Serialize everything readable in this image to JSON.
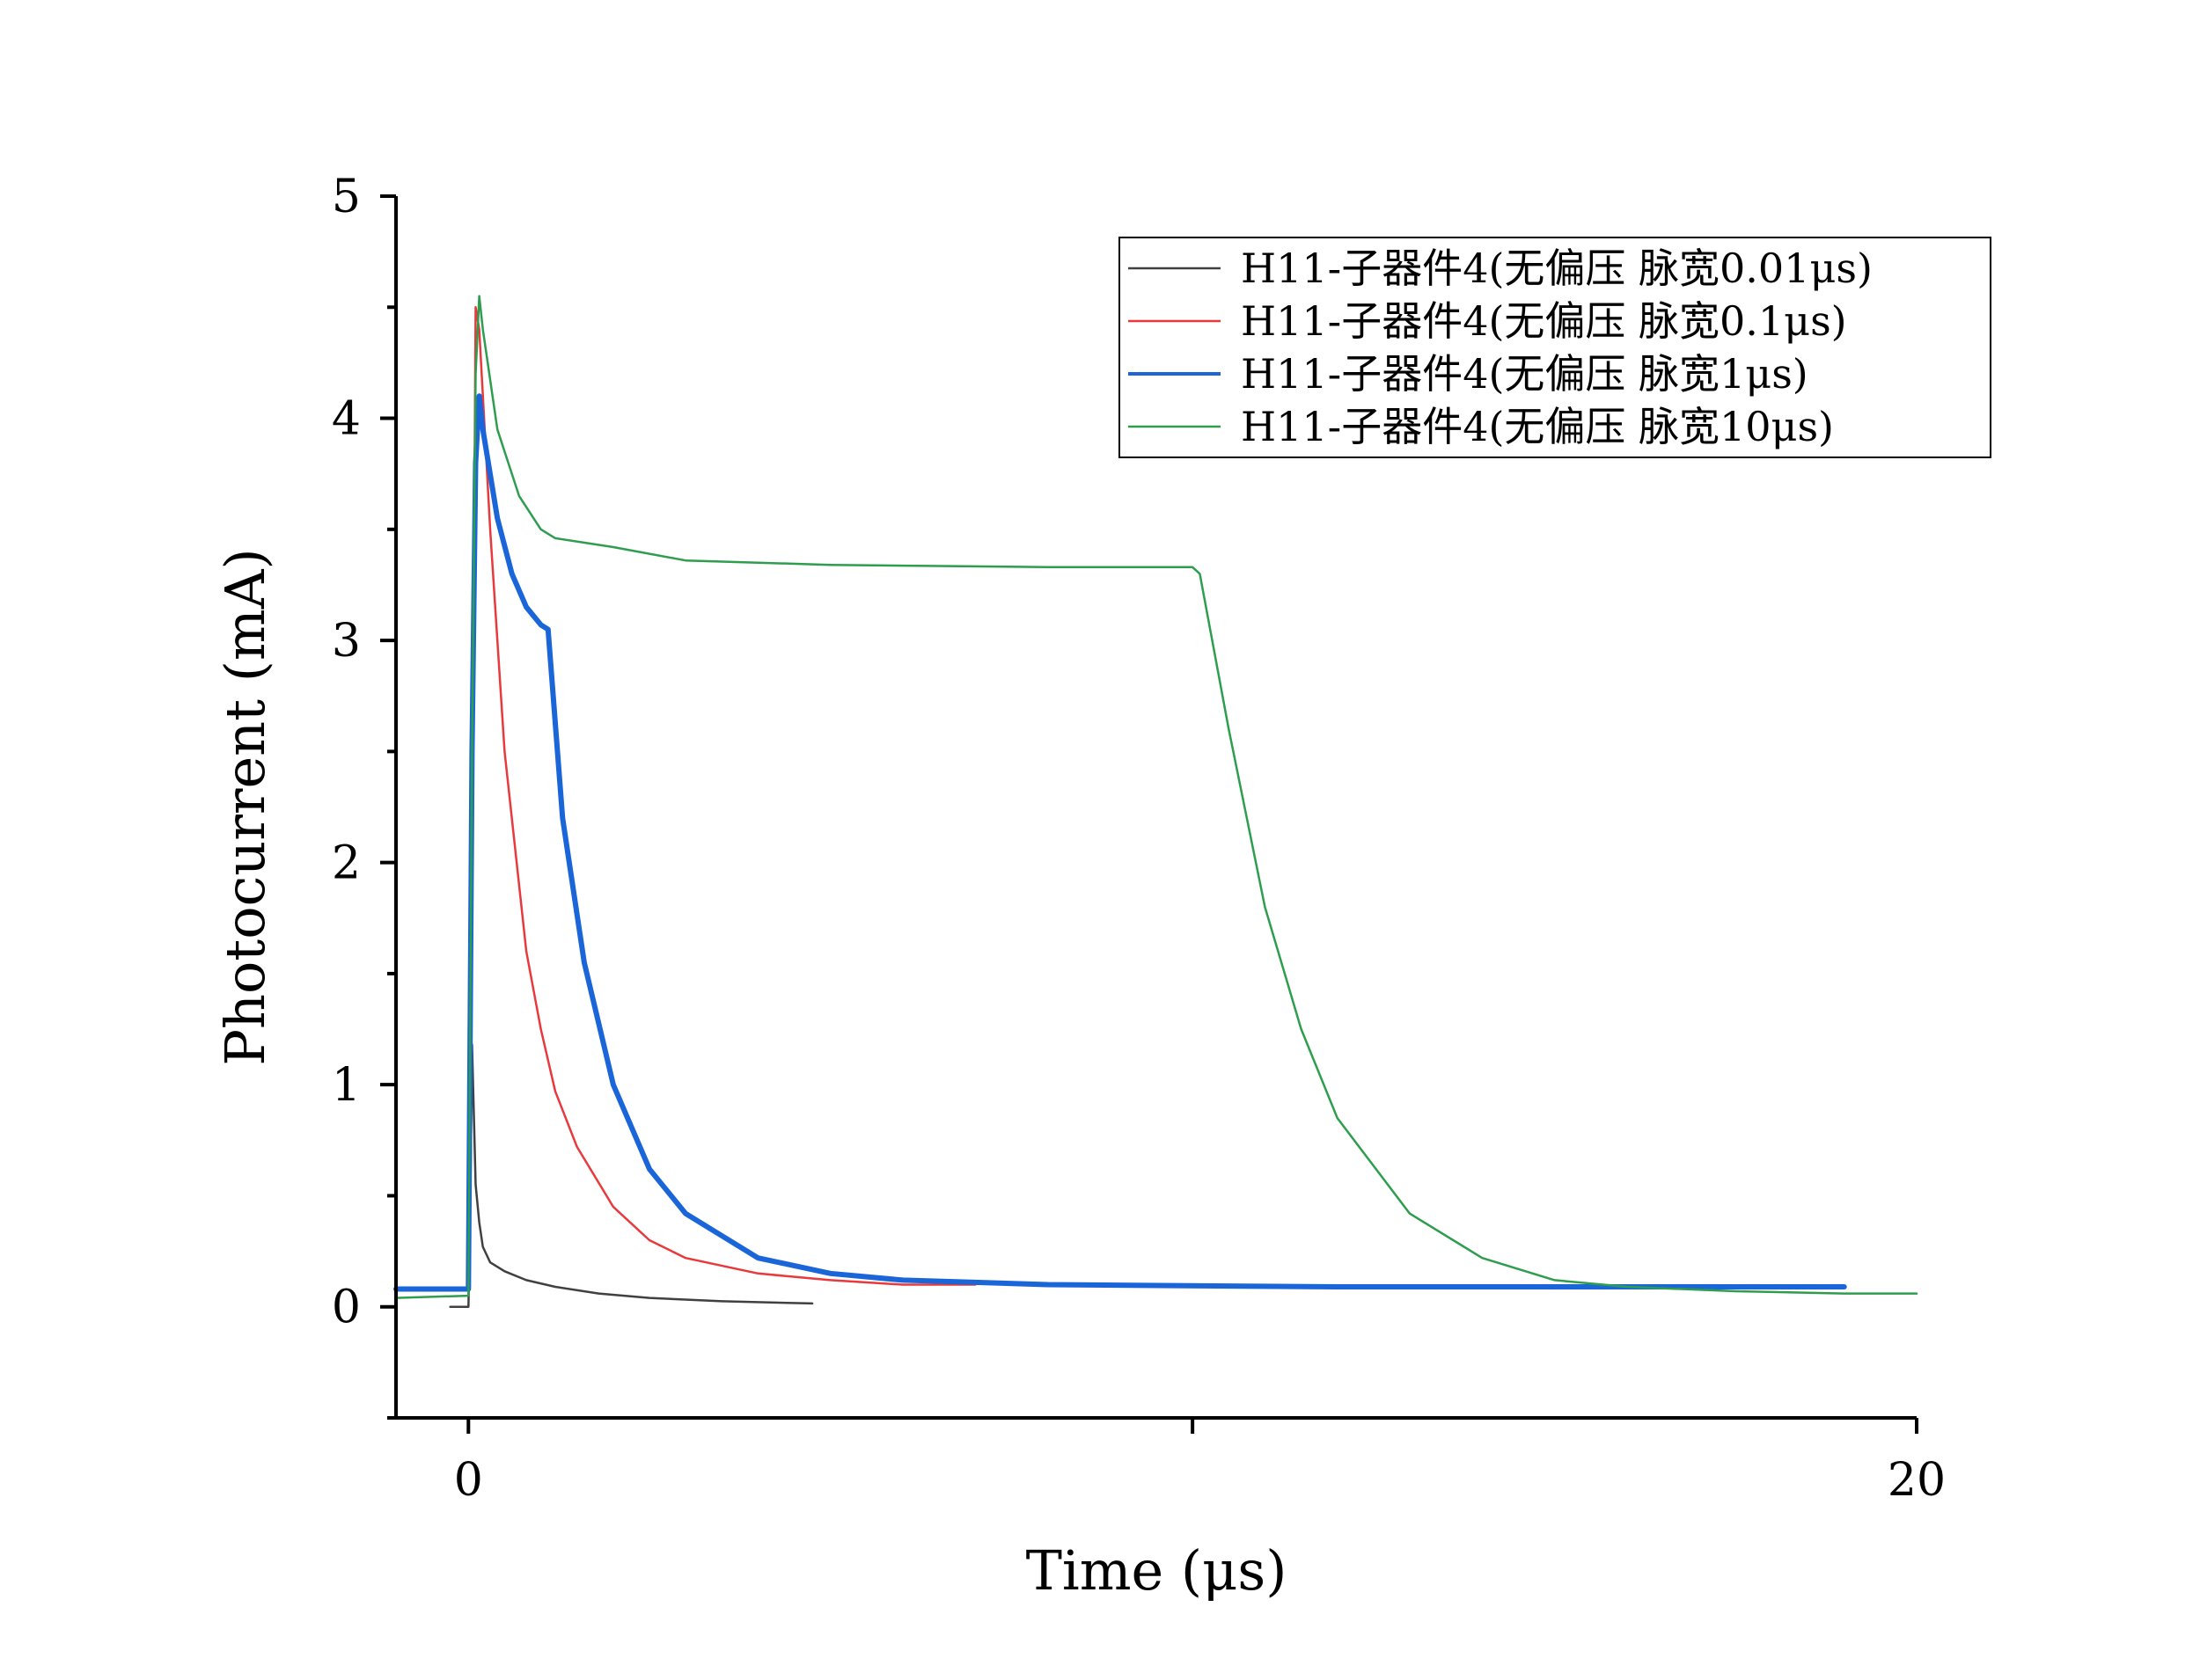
{
  "chart_data": {
    "type": "line",
    "title": "",
    "xlabel": "Time (μs)",
    "ylabel": "Photocurrent (mA)",
    "xlim": [
      -1,
      20
    ],
    "ylim": [
      -0.5,
      5
    ],
    "x_ticks": [
      0,
      10,
      20
    ],
    "x_tick_labels": [
      "0",
      "",
      "20"
    ],
    "y_ticks": [
      0,
      1,
      2,
      3,
      4,
      5
    ],
    "y_tick_labels": [
      "0",
      "1",
      "2",
      "3",
      "4",
      "5"
    ],
    "grid": false,
    "legend_position": "top-right",
    "series": [
      {
        "name": "H11-子器件4(无偏压 脉宽0.01μs)",
        "color": "#404040",
        "x": [
          -0.25,
          0,
          0.02,
          0.05,
          0.08,
          0.1,
          0.15,
          0.2,
          0.3,
          0.5,
          0.8,
          1.2,
          1.8,
          2.5,
          3.5,
          4.75
        ],
        "y": [
          0.0,
          0.0,
          0.3,
          1.18,
          0.8,
          0.55,
          0.38,
          0.27,
          0.2,
          0.16,
          0.12,
          0.09,
          0.06,
          0.04,
          0.025,
          0.015
        ]
      },
      {
        "name": "H11-子器件4(无偏压 脉宽0.1μs)",
        "color": "#e8393c",
        "x": [
          -1,
          0,
          0.05,
          0.1,
          0.15,
          0.3,
          0.5,
          0.8,
          1.0,
          1.2,
          1.5,
          2.0,
          2.5,
          3.0,
          4.0,
          5.0,
          6.0,
          7.0
        ],
        "y": [
          0.08,
          0.08,
          2.0,
          4.5,
          4.4,
          3.5,
          2.5,
          1.6,
          1.25,
          0.97,
          0.72,
          0.45,
          0.3,
          0.22,
          0.15,
          0.12,
          0.1,
          0.1
        ]
      },
      {
        "name": "H11-子器件4(无偏压 脉宽1μs)",
        "color": "#1a66d9",
        "x": [
          -1,
          0,
          0.05,
          0.1,
          0.15,
          0.2,
          0.4,
          0.6,
          0.8,
          1.0,
          1.1,
          1.3,
          1.6,
          2.0,
          2.5,
          3.0,
          4.0,
          5.0,
          6.0,
          8.0,
          12.0,
          16.0,
          19.0
        ],
        "y": [
          0.08,
          0.08,
          2.5,
          3.8,
          4.1,
          3.95,
          3.55,
          3.3,
          3.15,
          3.07,
          3.05,
          2.2,
          1.55,
          1.0,
          0.62,
          0.42,
          0.22,
          0.15,
          0.12,
          0.1,
          0.09,
          0.09,
          0.09
        ]
      },
      {
        "name": "H11-子器件4(无偏压 脉宽10μs)",
        "color": "#2e9e4e",
        "x": [
          -1,
          0,
          0.05,
          0.1,
          0.15,
          0.2,
          0.4,
          0.7,
          1.0,
          1.2,
          2.0,
          3.0,
          5.0,
          8.0,
          10.0,
          10.1,
          10.5,
          11.0,
          11.5,
          12.0,
          13.0,
          14.0,
          15.0,
          16.0,
          17.5,
          19.0,
          20.0
        ],
        "y": [
          0.04,
          0.05,
          2.5,
          4.2,
          4.55,
          4.4,
          3.95,
          3.65,
          3.5,
          3.46,
          3.42,
          3.36,
          3.34,
          3.33,
          3.33,
          3.3,
          2.6,
          1.8,
          1.25,
          0.85,
          0.42,
          0.22,
          0.12,
          0.09,
          0.07,
          0.06,
          0.06
        ]
      }
    ]
  }
}
